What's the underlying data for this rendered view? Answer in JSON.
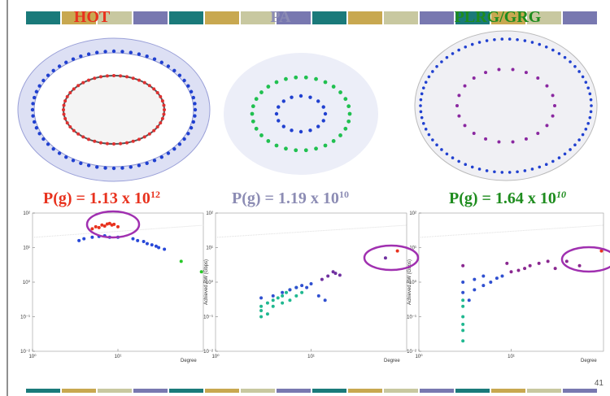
{
  "slide": {
    "titles": [
      {
        "text": "HOT",
        "color": "#e8321e"
      },
      {
        "text": "PA",
        "color": "#8c8cb4"
      },
      {
        "text": "PLRG/GRG",
        "color": "#1e8c1e"
      }
    ],
    "formulas": [
      {
        "text": "P(g) = 1.13 x 10",
        "exponent": "12",
        "color": "#e8321e"
      },
      {
        "text": "P(g) = 1.19 x 10",
        "exponent": "10",
        "color": "#8c8cb4"
      },
      {
        "text": "P(g) = 1.64 x 10",
        "exponent": "10",
        "color": "#1e8c1e"
      }
    ],
    "page_number": "41"
  },
  "chart_data": [
    {
      "type": "scatter",
      "x_log": true,
      "y_log": true,
      "xlim": [
        1,
        100
      ],
      "ylim": [
        0.01,
        100
      ],
      "xticks": [
        {
          "value": 1,
          "label": "10⁰"
        },
        {
          "value": 10,
          "label": "10¹"
        }
      ],
      "yticks": [
        {
          "value": 0.01,
          "label": "10⁻²"
        },
        {
          "value": 0.1,
          "label": "10⁻¹"
        },
        {
          "value": 1,
          "label": "10⁰"
        },
        {
          "value": 10,
          "label": "10¹"
        },
        {
          "value": 100,
          "label": "10²"
        }
      ],
      "xlabel": "Degree",
      "series": [
        {
          "color": "#e8321e",
          "x": [
            5,
            5.5,
            6,
            6.5,
            7,
            7.5,
            8,
            8.5,
            9,
            10
          ],
          "values": [
            35,
            40,
            38,
            45,
            42,
            48,
            50,
            45,
            47,
            40
          ]
        },
        {
          "color": "#2848d8",
          "x": [
            3.5,
            4,
            5,
            6,
            7,
            8,
            10,
            15,
            17,
            20,
            22,
            25,
            28,
            30,
            35
          ],
          "values": [
            16,
            18,
            20,
            21,
            22,
            20,
            20,
            18,
            16,
            15,
            13,
            12,
            11,
            10,
            9
          ]
        },
        {
          "color": "#28c828",
          "x": [
            55,
            95
          ],
          "values": [
            4,
            2
          ]
        }
      ]
    },
    {
      "type": "scatter",
      "x_log": true,
      "y_log": true,
      "xlim": [
        1,
        100
      ],
      "ylim": [
        0.01,
        100
      ],
      "xticks": [
        {
          "value": 1,
          "label": "10⁰"
        },
        {
          "value": 10,
          "label": "10¹"
        }
      ],
      "yticks": [
        {
          "value": 0.01,
          "label": "10⁻²"
        },
        {
          "value": 0.1,
          "label": "10⁻¹"
        },
        {
          "value": 1,
          "label": "10⁰"
        },
        {
          "value": 10,
          "label": "10¹"
        },
        {
          "value": 100,
          "label": "10²"
        }
      ],
      "xlabel": "Degree",
      "ylabel": "Achieved BW (Gbps)",
      "series": [
        {
          "color": "#20b890",
          "x": [
            3,
            3,
            3,
            3.5,
            3.5,
            4,
            4,
            4.5,
            5,
            5,
            5.5,
            6,
            6,
            7,
            7,
            8
          ],
          "values": [
            0.1,
            0.15,
            0.2,
            0.12,
            0.25,
            0.3,
            0.2,
            0.35,
            0.25,
            0.4,
            0.5,
            0.3,
            0.6,
            0.4,
            0.7,
            0.5
          ]
        },
        {
          "color": "#3050d0",
          "x": [
            3,
            4,
            5,
            6,
            7,
            8,
            9,
            10,
            12,
            14
          ],
          "values": [
            0.35,
            0.4,
            0.5,
            0.6,
            0.7,
            0.8,
            0.7,
            0.9,
            0.4,
            0.3
          ]
        },
        {
          "color": "#7030a0",
          "x": [
            13,
            15,
            17,
            18,
            20,
            60
          ],
          "values": [
            1.2,
            1.5,
            2,
            1.8,
            1.6,
            5
          ]
        },
        {
          "color": "#e8321e",
          "x": [
            80
          ],
          "values": [
            8
          ]
        }
      ]
    },
    {
      "type": "scatter",
      "x_log": true,
      "y_log": true,
      "xlim": [
        1,
        100
      ],
      "ylim": [
        0.01,
        100
      ],
      "xticks": [
        {
          "value": 1,
          "label": "10⁰"
        },
        {
          "value": 10,
          "label": "10¹"
        }
      ],
      "yticks": [
        {
          "value": 0.01,
          "label": "10⁻²"
        },
        {
          "value": 0.1,
          "label": "10⁻¹"
        },
        {
          "value": 1,
          "label": "10⁰"
        },
        {
          "value": 10,
          "label": "10¹"
        },
        {
          "value": 100,
          "label": "10²"
        }
      ],
      "xlabel": "Degree",
      "ylabel": "Achieved BW (Gbps)",
      "series": [
        {
          "color": "#20b890",
          "x": [
            3,
            3,
            3,
            3,
            3,
            3
          ],
          "values": [
            0.02,
            0.04,
            0.06,
            0.1,
            0.2,
            0.3
          ]
        },
        {
          "color": "#3050d0",
          "x": [
            3,
            3,
            3.5,
            4,
            4,
            5,
            5,
            6,
            7,
            8
          ],
          "values": [
            0.5,
            1,
            0.3,
            0.6,
            1.2,
            0.8,
            1.5,
            1,
            1.3,
            1.5
          ]
        },
        {
          "color": "#8a2890",
          "x": [
            3,
            9,
            10,
            12,
            14,
            16,
            20,
            25,
            30,
            40,
            55
          ],
          "values": [
            3,
            3.5,
            2,
            2.2,
            2.5,
            3,
            3.5,
            4,
            2.5,
            4,
            3
          ]
        },
        {
          "color": "#e8321e",
          "x": [
            95
          ],
          "values": [
            8
          ]
        }
      ]
    }
  ]
}
